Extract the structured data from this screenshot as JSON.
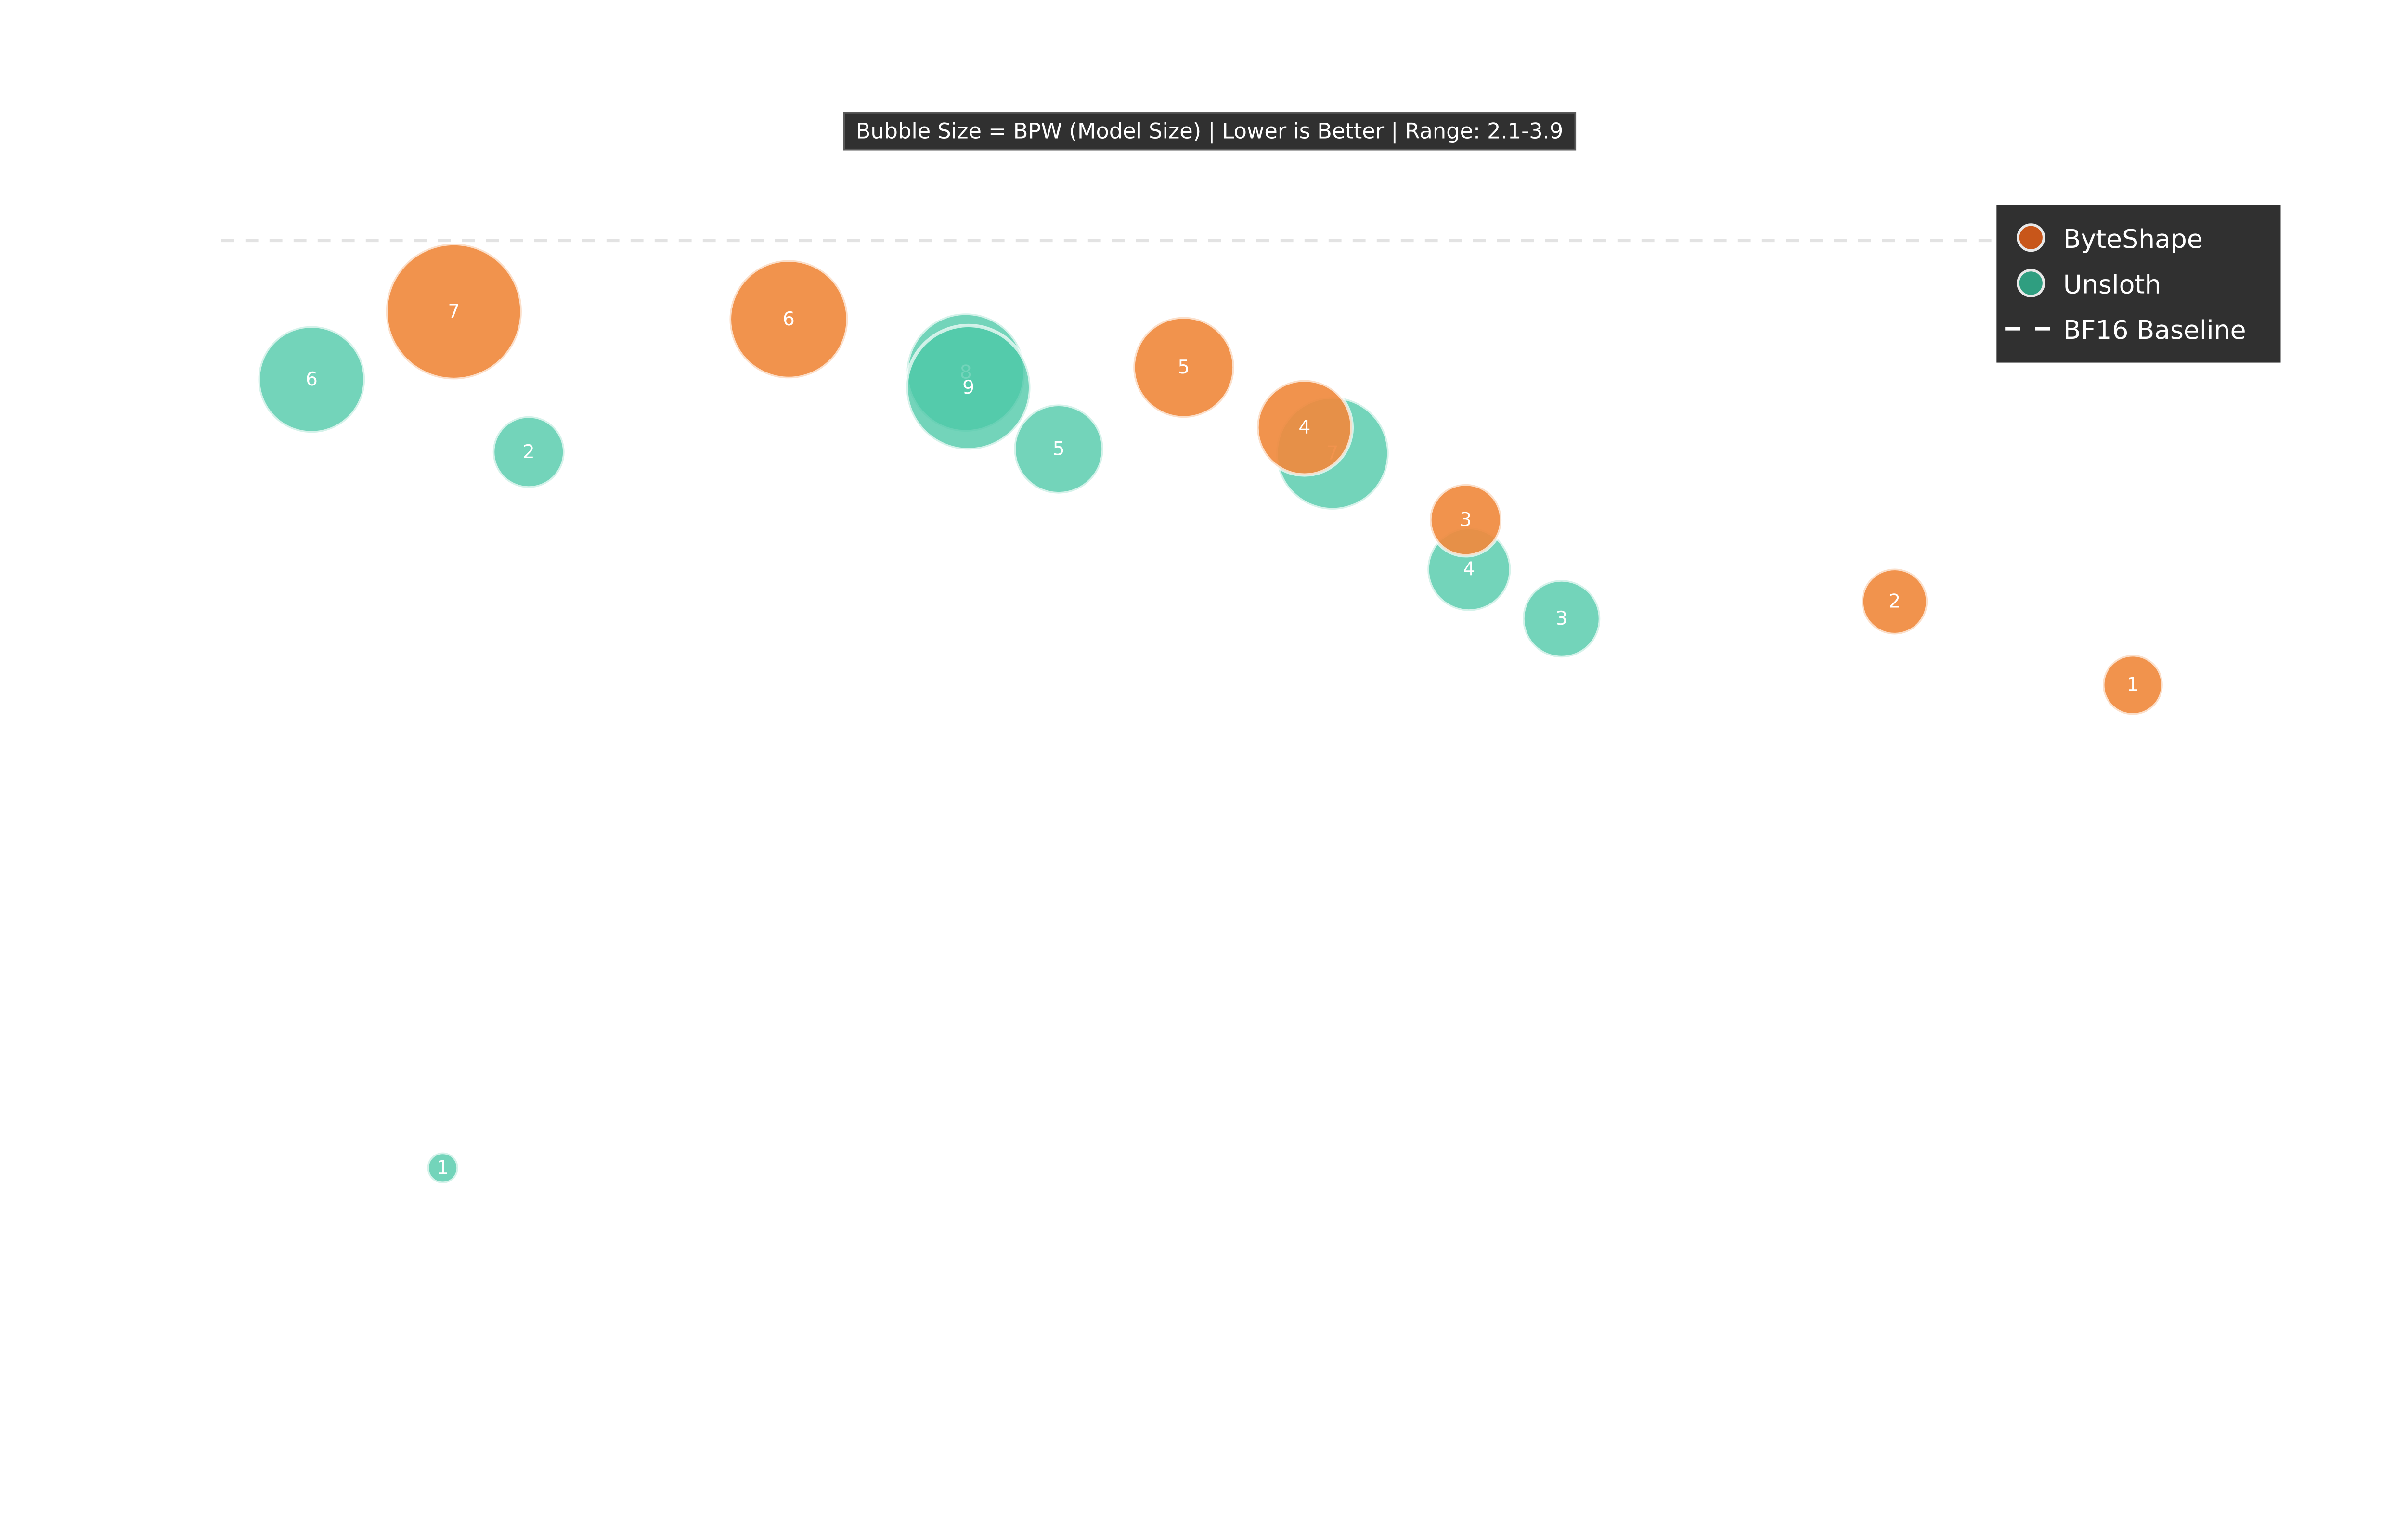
{
  "chart_data": {
    "type": "scatter",
    "subtitle": "Bubble Size = BPW (Model Size) | Lower is Better | Range: 2.1-3.9",
    "xlabel": "",
    "ylabel": "",
    "grid": false,
    "legend_placement": "top-right",
    "colors": {
      "ByteShape": "#f08a3e",
      "Unsloth": "#4bc8a6",
      "baseline": "#e0e0e0"
    },
    "baseline": {
      "name": "BF16 Baseline",
      "style": "dashed"
    },
    "series": [
      {
        "name": "Unsloth",
        "points": [
          {
            "label": "1",
            "bpw": 2.1
          },
          {
            "label": "2",
            "bpw": 2.8
          },
          {
            "label": "3",
            "bpw": 2.9
          },
          {
            "label": "4",
            "bpw": 3.0
          },
          {
            "label": "5",
            "bpw": 3.1
          },
          {
            "label": "6",
            "bpw": 3.4
          },
          {
            "label": "7",
            "bpw": 3.5
          },
          {
            "label": "8",
            "bpw": 3.6
          },
          {
            "label": "9",
            "bpw": 3.7
          }
        ]
      },
      {
        "name": "ByteShape",
        "points": [
          {
            "label": "1",
            "bpw": 2.6
          },
          {
            "label": "2",
            "bpw": 2.7
          },
          {
            "label": "3",
            "bpw": 2.8
          },
          {
            "label": "4",
            "bpw": 3.2
          },
          {
            "label": "5",
            "bpw": 3.3
          },
          {
            "label": "6",
            "bpw": 3.6
          },
          {
            "label": "7",
            "bpw": 3.9
          }
        ]
      }
    ]
  },
  "legend": {
    "items": [
      "ByteShape",
      "Unsloth",
      "BF16 Baseline"
    ]
  }
}
